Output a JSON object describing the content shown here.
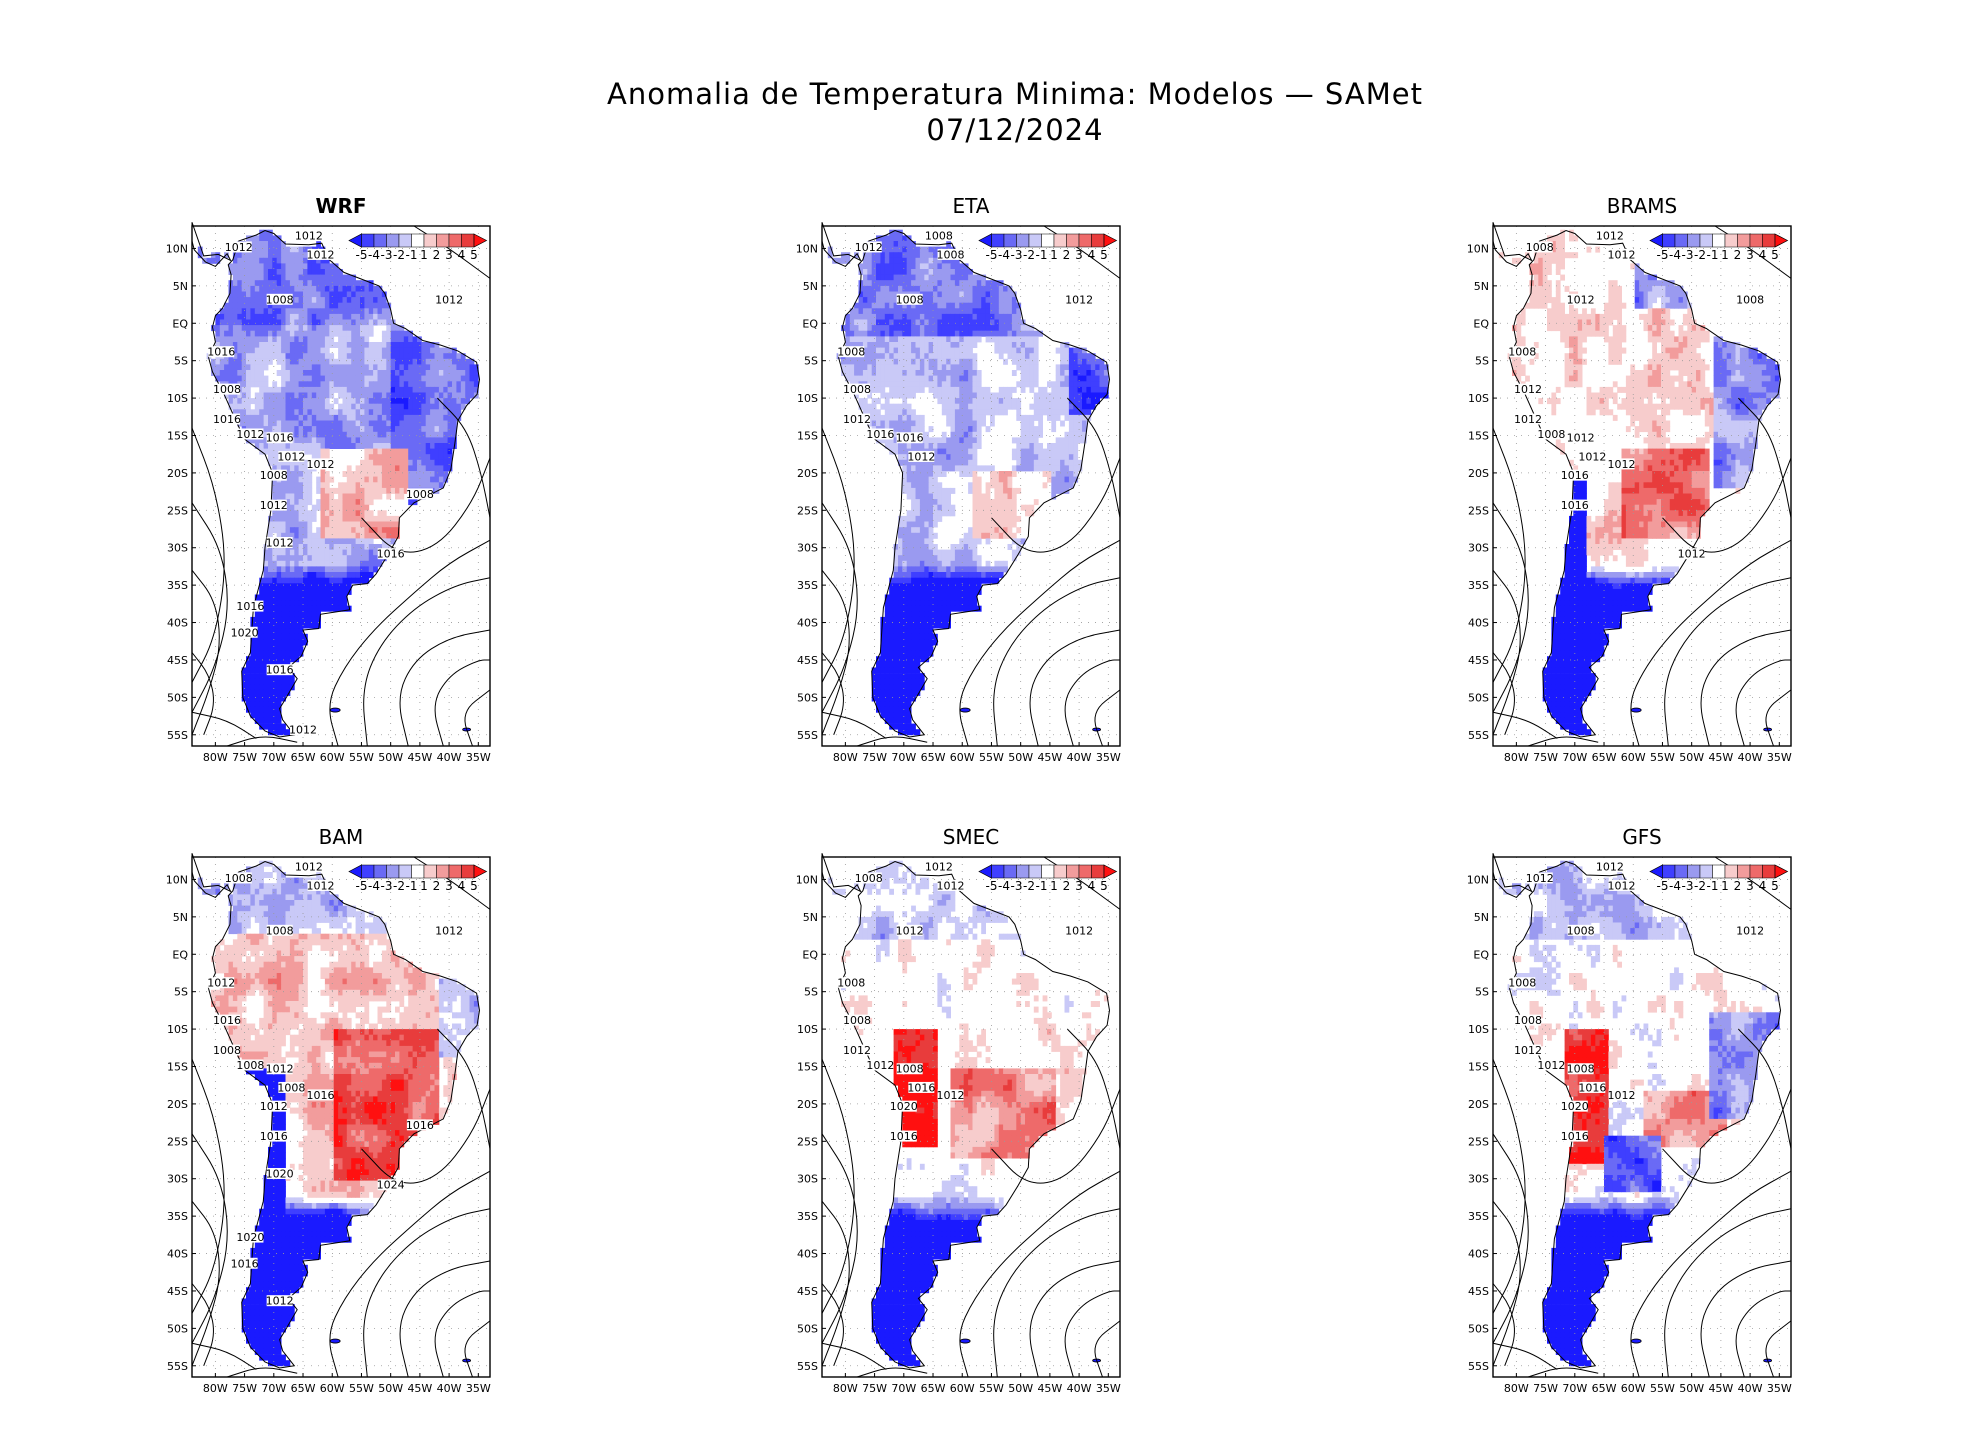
{
  "title": {
    "line1": "Anomalia de Temperatura Minima: Modelos — SAMet",
    "line2": "07/12/2024"
  },
  "colorbar": {
    "labels": [
      "-5",
      "-4",
      "-3",
      "-2",
      "-1",
      "1",
      "2",
      "3",
      "4",
      "5"
    ],
    "colors": [
      "#1a1aff",
      "#3f3fff",
      "#6a6af5",
      "#9a9af0",
      "#c9c9f7",
      "#ffffff",
      "#f7cccc",
      "#f29c9c",
      "#ee6a6a",
      "#e83c3c",
      "#ff1010"
    ]
  },
  "axes": {
    "lat_labels": [
      "10N",
      "5N",
      "EQ",
      "5S",
      "10S",
      "15S",
      "20S",
      "25S",
      "30S",
      "35S",
      "40S",
      "45S",
      "50S",
      "55S"
    ],
    "lon_labels": [
      "80W",
      "75W",
      "70W",
      "65W",
      "60W",
      "55W",
      "50W",
      "45W",
      "40W",
      "35W"
    ]
  },
  "panels": [
    {
      "title": "WRF",
      "style": "cold",
      "isobars": [
        "1012",
        "1012",
        "1012",
        "1008",
        "1012",
        "1016",
        "1008",
        "1016",
        "1012",
        "1016",
        "1012",
        "1008",
        "1012",
        "1012",
        "1016",
        "1008",
        "1012",
        "1016",
        "1020",
        "1016",
        "1012"
      ]
    },
    {
      "title": "ETA",
      "style": "cold2",
      "isobars": [
        "1008",
        "1008",
        "1012",
        "1008",
        "1012",
        "1008",
        "1008",
        "1012",
        "1016",
        "1016",
        "1012"
      ]
    },
    {
      "title": "BRAMS",
      "style": "mixed",
      "isobars": [
        "1012",
        "1012",
        "1008",
        "1012",
        "1008",
        "1008",
        "1012",
        "1012",
        "1008",
        "1012",
        "1012",
        "1016",
        "1016",
        "1012",
        "1012"
      ]
    },
    {
      "title": "BAM",
      "style": "warm",
      "isobars": [
        "1012",
        "1012",
        "1008",
        "1008",
        "1012",
        "1012",
        "1016",
        "1008",
        "1008",
        "1012",
        "1008",
        "1012",
        "1016",
        "1016",
        "1024",
        "1016",
        "1020",
        "1020",
        "1016",
        "1012"
      ]
    },
    {
      "title": "SMEC",
      "style": "warm2",
      "isobars": [
        "1012",
        "1012",
        "1008",
        "1012",
        "1012",
        "1008",
        "1008",
        "1012",
        "1012",
        "1008",
        "1016",
        "1020",
        "1016",
        "1012"
      ]
    },
    {
      "title": "GFS",
      "style": "warm3",
      "isobars": [
        "1012",
        "1012",
        "1012",
        "1008",
        "1012",
        "1008",
        "1008",
        "1012",
        "1012",
        "1008",
        "1016",
        "1020",
        "1016",
        "1012"
      ]
    }
  ]
}
